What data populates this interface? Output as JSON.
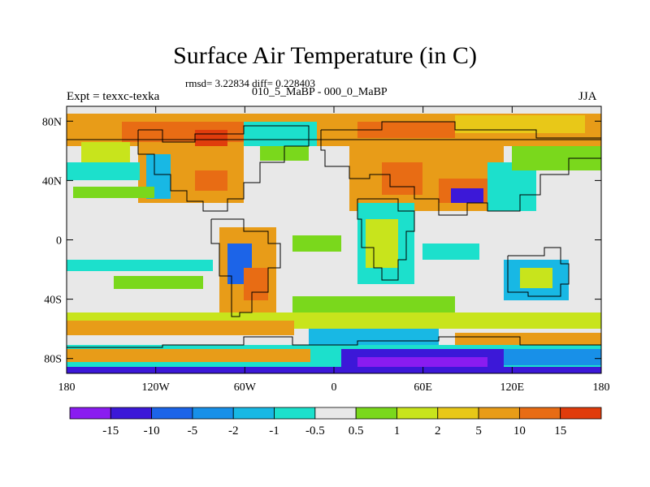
{
  "map": {
    "title": "Surface Air Temperature (in C)",
    "stats": "rmsd= 3.22834 diff= 0.228403",
    "experiment": "Expt = texxc-texka",
    "period": "010_5_MaBP - 000_0_MaBP",
    "season": "JJA",
    "lon_ticks": [
      "180",
      "120W",
      "60W",
      "0",
      "60E",
      "120E",
      "180"
    ],
    "lat_ticks": [
      "80N",
      "40N",
      "0",
      "40S",
      "80S"
    ]
  },
  "colorbar": {
    "labels": [
      "-15",
      "-10",
      "-5",
      "-2",
      "-1",
      "-0.5",
      "0.5",
      "1",
      "2",
      "5",
      "10",
      "15"
    ],
    "colors": [
      "#8a1cf0",
      "#3c18d8",
      "#1c64e8",
      "#1890e8",
      "#18b8e4",
      "#1ce0cc",
      "#e8e8e8",
      "#7ad81c",
      "#c8e41c",
      "#e8c818",
      "#e89c18",
      "#e86c14",
      "#e03c0c"
    ]
  }
}
